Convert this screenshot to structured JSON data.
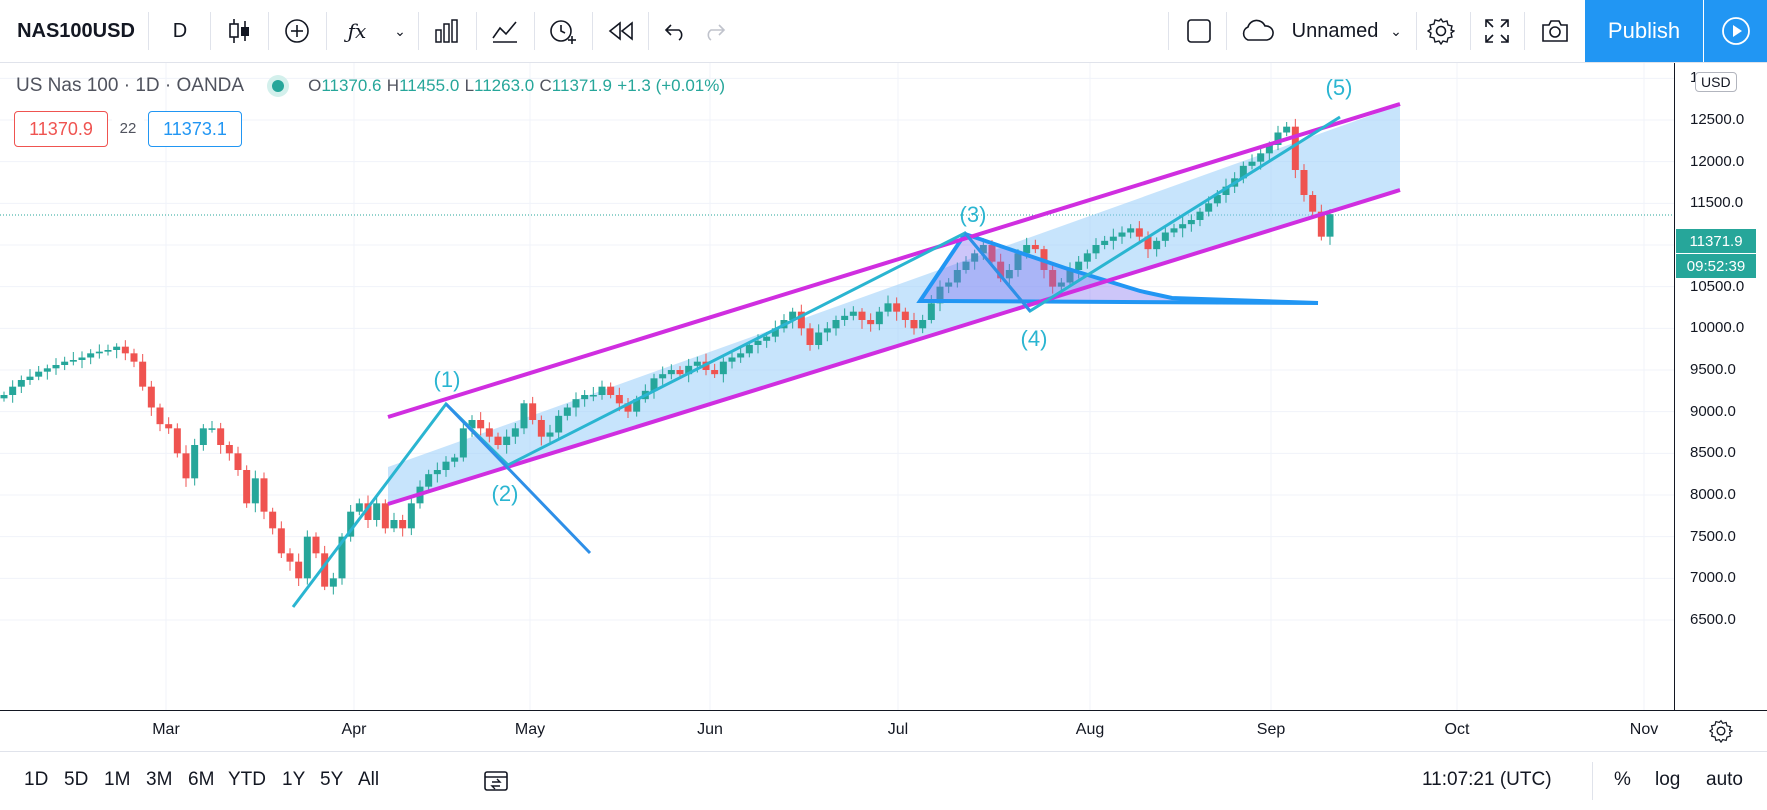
{
  "toolbar": {
    "symbol": "NAS100USD",
    "interval": "D",
    "layout_name": "Unnamed",
    "publish_label": "Publish"
  },
  "legend": {
    "title": "US Nas 100 · 1D · OANDA",
    "o_label": "O",
    "o": "11370.6",
    "h_label": "H",
    "h": "11455.0",
    "l_label": "L",
    "l": "11263.0",
    "c_label": "C",
    "c": "11371.9",
    "change": "+1.3 (+0.01%)",
    "bid": "11370.9",
    "spread": "22",
    "ask": "11373.1"
  },
  "price_axis": {
    "currency": "USD",
    "labels": [
      "1...",
      "12500.0",
      "12000.0",
      "11500.0",
      "11000.0",
      "10500.0",
      "10000.0",
      "9500.0",
      "9000.0",
      "8500.0",
      "8000.0",
      "7500.0",
      "7000.0",
      "6500.0"
    ],
    "current_price": "11371.9",
    "countdown": "09:52:39"
  },
  "time_axis": {
    "labels": [
      "Mar",
      "Apr",
      "May",
      "Jun",
      "Jul",
      "Aug",
      "Sep",
      "Oct",
      "Nov"
    ]
  },
  "annotations": {
    "w1": "(1)",
    "w2": "(2)",
    "w3": "(3)",
    "w4": "(4)",
    "w5": "(5)"
  },
  "bottom": {
    "ranges": [
      "1D",
      "5D",
      "1M",
      "3M",
      "6M",
      "YTD",
      "1Y",
      "5Y",
      "All"
    ],
    "clock": "11:07:21 (UTC)",
    "percent": "%",
    "log": "log",
    "auto": "auto"
  },
  "colors": {
    "up": "#26a69a",
    "down": "#ef5350",
    "channel": "#d02ee0",
    "wave": "#2ab5d1",
    "accent": "#2196f3"
  },
  "chart_data": {
    "type": "candlestick",
    "ylim": [
      6400,
      12900
    ],
    "closes": [
      9200,
      9300,
      9380,
      9420,
      9480,
      9520,
      9560,
      9600,
      9620,
      9650,
      9700,
      9720,
      9740,
      9780,
      9700,
      9600,
      9300,
      9050,
      8850,
      8800,
      8500,
      8200,
      8600,
      8800,
      8800,
      8600,
      8500,
      8300,
      7900,
      8200,
      7800,
      7600,
      7300,
      7200,
      7000,
      7500,
      7300,
      6900,
      7000,
      7500,
      7800,
      7900,
      7700,
      7900,
      7600,
      7700,
      7600,
      7900,
      8100,
      8250,
      8300,
      8400,
      8450,
      8800,
      8900,
      8800,
      8700,
      8600,
      8700,
      8800,
      9100,
      8900,
      8700,
      8750,
      8950,
      9050,
      9150,
      9200,
      9200,
      9300,
      9200,
      9100,
      9000,
      9150,
      9250,
      9400,
      9450,
      9500,
      9450,
      9550,
      9600,
      9500,
      9450,
      9600,
      9650,
      9700,
      9800,
      9850,
      9900,
      10000,
      10100,
      10200,
      10000,
      9800,
      9950,
      10000,
      10100,
      10150,
      10200,
      10100,
      10050,
      10200,
      10300,
      10200,
      10100,
      10000,
      10100,
      10300,
      10500,
      10550,
      10700,
      10800,
      10900,
      11000,
      10800,
      10600,
      10700,
      10900,
      11000,
      10950,
      10700,
      10500,
      10550,
      10700,
      10800,
      10900,
      11000,
      11050,
      11100,
      11150,
      11200,
      11100,
      10950,
      11050,
      11150,
      11200,
      11250,
      11300,
      11400,
      11500,
      11600,
      11700,
      11800,
      11950,
      12000,
      12100,
      12200,
      12350,
      12420,
      11900,
      11600,
      11400,
      11100,
      11370
    ]
  }
}
